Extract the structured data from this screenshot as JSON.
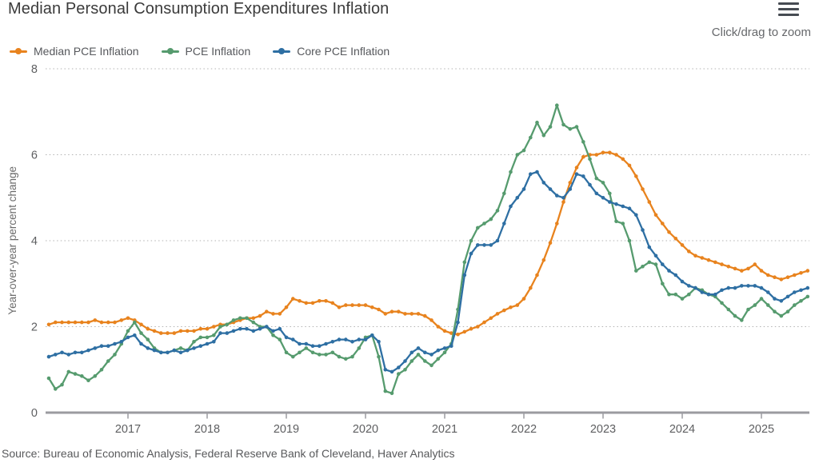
{
  "header": {
    "title": "Median Personal Consumption Expenditures Inflation",
    "zoom_hint": "Click/drag to zoom"
  },
  "menu_icon": "hamburger-icon",
  "y_axis": {
    "title": "Year-over-year percent change",
    "ticks": [
      0,
      2,
      4,
      6,
      8
    ]
  },
  "x_axis": {
    "tick_labels": [
      "2017",
      "2018",
      "2019",
      "2020",
      "2021",
      "2022",
      "2023",
      "2024",
      "2025"
    ]
  },
  "source": "Source: Bureau of Economic Analysis, Federal Reserve Bank of Cleveland, Haver Analytics",
  "colors": {
    "median_pce": "#e8831e",
    "pce": "#569b6e",
    "core_pce": "#2e6fa3",
    "gridline": "#b3b3b3",
    "axis_line": "#9b9ba0",
    "tick_text": "#5e5f61"
  },
  "chart_data": {
    "type": "line",
    "title": "Median Personal Consumption Expenditures Inflation",
    "xlabel": "",
    "ylabel": "Year-over-year percent change",
    "ylim": [
      0,
      8
    ],
    "grid": "horizontal-dotted",
    "legend_position": "top-left",
    "frequency": "monthly",
    "x_start": "2016-01",
    "x_end": "2025-08",
    "x_tick_labels": [
      "2017",
      "2018",
      "2019",
      "2020",
      "2021",
      "2022",
      "2023",
      "2024",
      "2025"
    ],
    "series": [
      {
        "name": "Median PCE Inflation",
        "color": "#e8831e",
        "values": [
          2.05,
          2.1,
          2.1,
          2.1,
          2.1,
          2.1,
          2.1,
          2.15,
          2.1,
          2.1,
          2.1,
          2.15,
          2.2,
          2.15,
          2.05,
          1.95,
          1.9,
          1.85,
          1.85,
          1.85,
          1.9,
          1.9,
          1.9,
          1.95,
          1.95,
          2.0,
          2.05,
          2.05,
          2.1,
          2.15,
          2.2,
          2.2,
          2.25,
          2.35,
          2.3,
          2.3,
          2.45,
          2.65,
          2.6,
          2.55,
          2.55,
          2.6,
          2.6,
          2.55,
          2.45,
          2.5,
          2.5,
          2.5,
          2.5,
          2.45,
          2.4,
          2.3,
          2.35,
          2.35,
          2.3,
          2.3,
          2.3,
          2.25,
          2.15,
          2.0,
          1.9,
          1.85,
          1.82,
          1.88,
          1.95,
          2.0,
          2.1,
          2.2,
          2.3,
          2.38,
          2.45,
          2.5,
          2.65,
          2.9,
          3.2,
          3.55,
          3.95,
          4.4,
          4.9,
          5.35,
          5.7,
          5.95,
          6.0,
          6.0,
          6.05,
          6.05,
          6.0,
          5.9,
          5.75,
          5.5,
          5.2,
          4.9,
          4.6,
          4.4,
          4.2,
          4.05,
          3.9,
          3.75,
          3.65,
          3.6,
          3.55,
          3.5,
          3.45,
          3.4,
          3.35,
          3.3,
          3.35,
          3.45,
          3.3,
          3.2,
          3.15,
          3.1,
          3.15,
          3.2,
          3.25,
          3.3
        ]
      },
      {
        "name": "PCE Inflation",
        "color": "#569b6e",
        "values": [
          0.8,
          0.55,
          0.65,
          0.95,
          0.9,
          0.85,
          0.75,
          0.85,
          1.0,
          1.2,
          1.35,
          1.6,
          1.9,
          2.1,
          1.85,
          1.7,
          1.5,
          1.4,
          1.4,
          1.45,
          1.5,
          1.45,
          1.65,
          1.75,
          1.75,
          1.8,
          2.0,
          2.05,
          2.15,
          2.2,
          2.2,
          2.1,
          2.0,
          2.0,
          1.8,
          1.7,
          1.4,
          1.3,
          1.4,
          1.5,
          1.4,
          1.35,
          1.35,
          1.4,
          1.3,
          1.25,
          1.3,
          1.5,
          1.75,
          1.8,
          1.3,
          0.5,
          0.45,
          0.9,
          1.0,
          1.2,
          1.35,
          1.2,
          1.1,
          1.25,
          1.4,
          1.6,
          2.4,
          3.5,
          4.0,
          4.3,
          4.4,
          4.5,
          4.7,
          5.1,
          5.6,
          6.0,
          6.1,
          6.4,
          6.75,
          6.45,
          6.65,
          7.15,
          6.7,
          6.6,
          6.65,
          6.3,
          5.9,
          5.45,
          5.35,
          5.1,
          4.45,
          4.4,
          4.0,
          3.3,
          3.4,
          3.5,
          3.45,
          3.0,
          2.75,
          2.75,
          2.65,
          2.75,
          2.9,
          2.85,
          2.75,
          2.7,
          2.55,
          2.4,
          2.25,
          2.15,
          2.4,
          2.5,
          2.65,
          2.5,
          2.35,
          2.25,
          2.35,
          2.5,
          2.6,
          2.7
        ]
      },
      {
        "name": "Core PCE Inflation",
        "color": "#2e6fa3",
        "values": [
          1.3,
          1.35,
          1.4,
          1.35,
          1.4,
          1.4,
          1.45,
          1.5,
          1.55,
          1.55,
          1.6,
          1.65,
          1.75,
          1.8,
          1.6,
          1.5,
          1.45,
          1.4,
          1.4,
          1.45,
          1.4,
          1.45,
          1.5,
          1.55,
          1.6,
          1.65,
          1.85,
          1.85,
          1.9,
          1.95,
          1.95,
          1.9,
          1.95,
          2.0,
          1.9,
          1.95,
          1.75,
          1.7,
          1.6,
          1.6,
          1.55,
          1.55,
          1.6,
          1.65,
          1.7,
          1.7,
          1.65,
          1.7,
          1.7,
          1.8,
          1.65,
          1.0,
          0.95,
          1.05,
          1.2,
          1.4,
          1.5,
          1.4,
          1.35,
          1.45,
          1.5,
          1.55,
          2.1,
          3.2,
          3.7,
          3.9,
          3.9,
          3.9,
          4.0,
          4.4,
          4.8,
          5.0,
          5.2,
          5.55,
          5.6,
          5.35,
          5.2,
          5.05,
          5.0,
          5.2,
          5.55,
          5.5,
          5.3,
          5.1,
          5.0,
          4.9,
          4.85,
          4.8,
          4.75,
          4.6,
          4.25,
          3.85,
          3.65,
          3.45,
          3.3,
          3.2,
          3.05,
          2.95,
          2.9,
          2.8,
          2.75,
          2.75,
          2.85,
          2.9,
          2.9,
          2.95,
          2.95,
          2.95,
          2.9,
          2.8,
          2.65,
          2.6,
          2.7,
          2.8,
          2.85,
          2.9
        ]
      }
    ]
  }
}
